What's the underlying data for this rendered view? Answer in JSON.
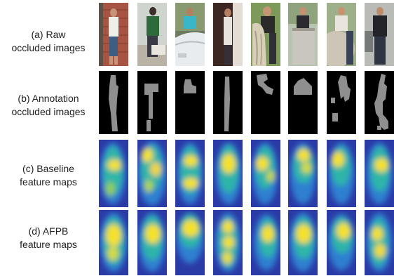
{
  "rows": [
    {
      "id": "raw",
      "line1": "(a)    Raw",
      "line2": "occluded images"
    },
    {
      "id": "annotation",
      "line1": "(b) Annotation",
      "line2": "occluded images"
    },
    {
      "id": "baseline",
      "line1": "(c)    Baseline",
      "line2": "feature maps"
    },
    {
      "id": "afpb",
      "line1": "(d)    AFPB",
      "line2": "feature maps"
    }
  ],
  "colors": {
    "background": "#ffffff",
    "mask_fg": "#8f8f8f",
    "mask_bg": "#000000",
    "heat_low": "#2a3aa6",
    "heat_mid": "#2fb5a8",
    "heat_high": "#f5e12a"
  }
}
